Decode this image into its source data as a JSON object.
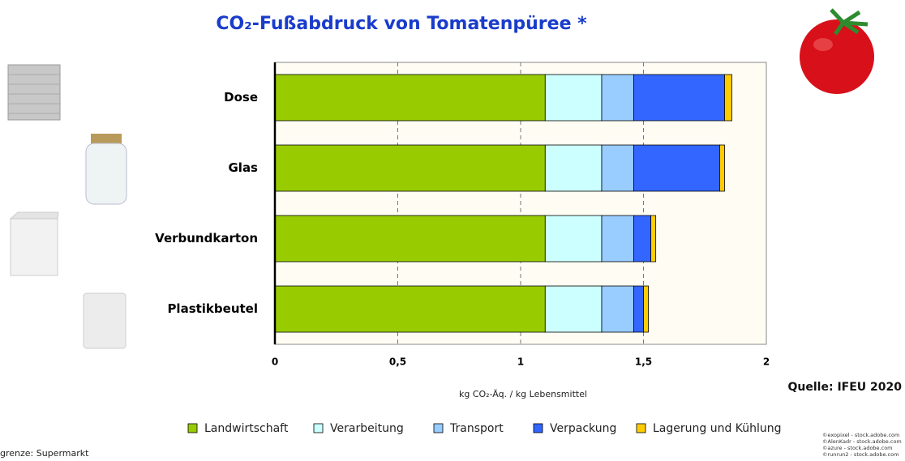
{
  "chart_data": {
    "type": "bar",
    "orientation": "horizontal",
    "stacked": true,
    "title": "CO₂-Fußabdruck von Tomatenpüree *",
    "categories": [
      "Dose",
      "Glas",
      "Verbundkarton",
      "Plastikbeutel"
    ],
    "series": [
      {
        "name": "Landwirtschaft",
        "color": "#99cc00",
        "values": [
          1.1,
          1.1,
          1.1,
          1.1
        ]
      },
      {
        "name": "Verarbeitung",
        "color": "#ccffff",
        "values": [
          0.23,
          0.23,
          0.23,
          0.23
        ]
      },
      {
        "name": "Transport",
        "color": "#99ccff",
        "values": [
          0.13,
          0.13,
          0.13,
          0.13
        ]
      },
      {
        "name": "Verpackung",
        "color": "#3366ff",
        "values": [
          0.37,
          0.35,
          0.07,
          0.04
        ]
      },
      {
        "name": "Lagerung und Kühlung",
        "color": "#ffcc00",
        "values": [
          0.03,
          0.02,
          0.02,
          0.02
        ]
      }
    ],
    "xlim": [
      0,
      2
    ],
    "xticks": [
      0,
      {
        "value": 0.5,
        "label": "0,5"
      },
      1,
      {
        "value": 1.5,
        "label": "1,5"
      },
      2
    ],
    "grid": true,
    "xlabel": "kg CO₂-Äq. / kg Lebensmittel",
    "source": "Quelle: IFEU 2020",
    "footnote": "grenze: Supermarkt",
    "credits": [
      "©exopixel - stock.adobe.com",
      "©AlenKadr - stock.adobe.com",
      "©azure - stock.adobe.com",
      "©runrun2 - stock.adobe.com"
    ]
  }
}
